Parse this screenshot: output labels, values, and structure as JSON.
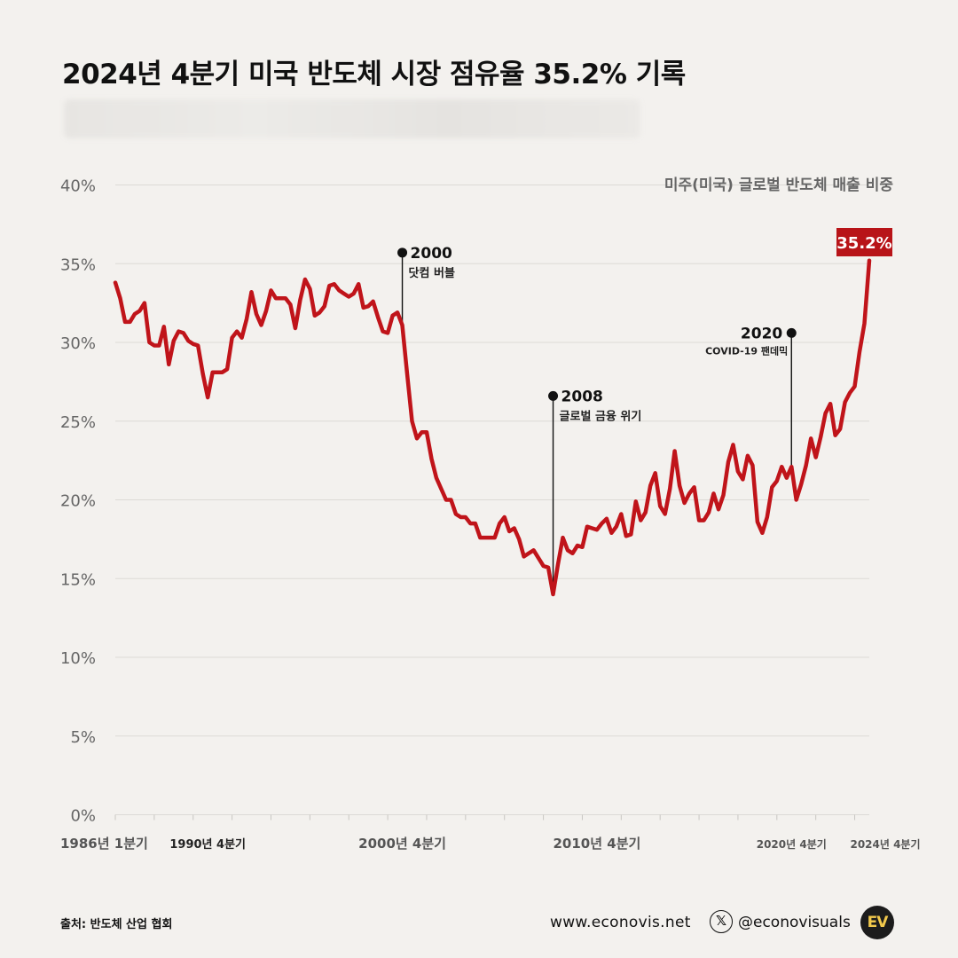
{
  "page": {
    "title": "2024년 4분기 미국 반도체 시장 점유율 35.2% 기록",
    "source": "출처: 반도체 산업 협회",
    "website": "www.econovis.net",
    "social_icon": "x-logo-icon",
    "social_handle": "@econovisuals",
    "logo_text": "EV"
  },
  "colors": {
    "line": "#c0141a",
    "badge": "#b81418",
    "grid": "#dcdad6",
    "background": "#f3f1ee"
  },
  "chart_data": {
    "type": "line",
    "title": "2024년 4분기 미국 반도체 시장 점유율 35.2% 기록",
    "series_label": "미주(미국) 글로벌 반도체 매출 비중",
    "ylim": [
      0,
      40
    ],
    "yticks": [
      0,
      5,
      10,
      15,
      20,
      25,
      30,
      35,
      40
    ],
    "ytick_labels": [
      "0%",
      "5%",
      "10%",
      "15%",
      "20%",
      "25%",
      "30%",
      "35%",
      "40%"
    ],
    "grid": true,
    "x_start": "1986년 1분기",
    "x_end": "2024년 4분기",
    "x_labels": [
      {
        "label": "1986년 1분기",
        "year": 1986.0
      },
      {
        "label": "1990년 4분기",
        "year": 1990.75
      },
      {
        "label": "2000년 4분기",
        "year": 2000.75
      },
      {
        "label": "2010년 4분기",
        "year": 2010.75
      },
      {
        "label": "2020년 4분기",
        "year": 2020.75
      },
      {
        "label": "2024년 4분기",
        "year": 2024.75
      }
    ],
    "points": [
      [
        1986.0,
        33.8
      ],
      [
        1986.25,
        32.8
      ],
      [
        1986.5,
        31.3
      ],
      [
        1986.75,
        31.3
      ],
      [
        1987.0,
        31.8
      ],
      [
        1987.25,
        32.0
      ],
      [
        1987.5,
        32.5
      ],
      [
        1987.75,
        30.0
      ],
      [
        1988.0,
        29.8
      ],
      [
        1988.25,
        29.8
      ],
      [
        1988.5,
        31.0
      ],
      [
        1988.75,
        28.6
      ],
      [
        1989.0,
        30.1
      ],
      [
        1989.25,
        30.7
      ],
      [
        1989.5,
        30.6
      ],
      [
        1989.75,
        30.1
      ],
      [
        1990.0,
        29.9
      ],
      [
        1990.25,
        29.8
      ],
      [
        1990.5,
        28.0
      ],
      [
        1990.75,
        26.5
      ],
      [
        1991.0,
        28.1
      ],
      [
        1991.25,
        28.1
      ],
      [
        1991.5,
        28.1
      ],
      [
        1991.75,
        28.3
      ],
      [
        1992.0,
        30.3
      ],
      [
        1992.25,
        30.7
      ],
      [
        1992.5,
        30.3
      ],
      [
        1992.75,
        31.5
      ],
      [
        1993.0,
        33.2
      ],
      [
        1993.25,
        31.8
      ],
      [
        1993.5,
        31.1
      ],
      [
        1993.75,
        32.0
      ],
      [
        1994.0,
        33.3
      ],
      [
        1994.25,
        32.8
      ],
      [
        1994.5,
        32.8
      ],
      [
        1994.75,
        32.8
      ],
      [
        1995.0,
        32.4
      ],
      [
        1995.25,
        30.9
      ],
      [
        1995.5,
        32.7
      ],
      [
        1995.75,
        34.0
      ],
      [
        1996.0,
        33.4
      ],
      [
        1996.25,
        31.7
      ],
      [
        1996.5,
        31.9
      ],
      [
        1996.75,
        32.3
      ],
      [
        1997.0,
        33.6
      ],
      [
        1997.25,
        33.7
      ],
      [
        1997.5,
        33.3
      ],
      [
        1997.75,
        33.1
      ],
      [
        1998.0,
        32.9
      ],
      [
        1998.25,
        33.1
      ],
      [
        1998.5,
        33.7
      ],
      [
        1998.75,
        32.2
      ],
      [
        1999.0,
        32.3
      ],
      [
        1999.25,
        32.6
      ],
      [
        1999.5,
        31.6
      ],
      [
        1999.75,
        30.7
      ],
      [
        2000.0,
        30.6
      ],
      [
        2000.25,
        31.7
      ],
      [
        2000.5,
        31.9
      ],
      [
        2000.75,
        31.1
      ],
      [
        2001.0,
        28.0
      ],
      [
        2001.25,
        25.0
      ],
      [
        2001.5,
        23.9
      ],
      [
        2001.75,
        24.3
      ],
      [
        2002.0,
        24.3
      ],
      [
        2002.25,
        22.6
      ],
      [
        2002.5,
        21.4
      ],
      [
        2002.75,
        20.7
      ],
      [
        2003.0,
        20.0
      ],
      [
        2003.25,
        20.0
      ],
      [
        2003.5,
        19.1
      ],
      [
        2003.75,
        18.9
      ],
      [
        2004.0,
        18.9
      ],
      [
        2004.25,
        18.5
      ],
      [
        2004.5,
        18.5
      ],
      [
        2004.75,
        17.6
      ],
      [
        2005.0,
        17.6
      ],
      [
        2005.25,
        17.6
      ],
      [
        2005.5,
        17.6
      ],
      [
        2005.75,
        18.5
      ],
      [
        2006.0,
        18.9
      ],
      [
        2006.25,
        18.0
      ],
      [
        2006.5,
        18.2
      ],
      [
        2006.75,
        17.5
      ],
      [
        2007.0,
        16.4
      ],
      [
        2007.25,
        16.6
      ],
      [
        2007.5,
        16.8
      ],
      [
        2007.75,
        16.3
      ],
      [
        2008.0,
        15.8
      ],
      [
        2008.25,
        15.7
      ],
      [
        2008.5,
        14.0
      ],
      [
        2008.75,
        15.9
      ],
      [
        2009.0,
        17.6
      ],
      [
        2009.25,
        16.8
      ],
      [
        2009.5,
        16.6
      ],
      [
        2009.75,
        17.1
      ],
      [
        2010.0,
        17.0
      ],
      [
        2010.25,
        18.3
      ],
      [
        2010.5,
        18.2
      ],
      [
        2010.75,
        18.1
      ],
      [
        2011.0,
        18.5
      ],
      [
        2011.25,
        18.8
      ],
      [
        2011.5,
        17.9
      ],
      [
        2011.75,
        18.3
      ],
      [
        2012.0,
        19.1
      ],
      [
        2012.25,
        17.7
      ],
      [
        2012.5,
        17.8
      ],
      [
        2012.75,
        19.9
      ],
      [
        2013.0,
        18.7
      ],
      [
        2013.25,
        19.2
      ],
      [
        2013.5,
        20.9
      ],
      [
        2013.75,
        21.7
      ],
      [
        2014.0,
        19.6
      ],
      [
        2014.25,
        19.1
      ],
      [
        2014.5,
        20.7
      ],
      [
        2014.75,
        23.1
      ],
      [
        2015.0,
        20.9
      ],
      [
        2015.25,
        19.8
      ],
      [
        2015.5,
        20.4
      ],
      [
        2015.75,
        20.8
      ],
      [
        2016.0,
        18.7
      ],
      [
        2016.25,
        18.7
      ],
      [
        2016.5,
        19.2
      ],
      [
        2016.75,
        20.4
      ],
      [
        2017.0,
        19.4
      ],
      [
        2017.25,
        20.3
      ],
      [
        2017.5,
        22.4
      ],
      [
        2017.75,
        23.5
      ],
      [
        2018.0,
        21.8
      ],
      [
        2018.25,
        21.3
      ],
      [
        2018.5,
        22.8
      ],
      [
        2018.75,
        22.2
      ],
      [
        2019.0,
        18.6
      ],
      [
        2019.25,
        17.9
      ],
      [
        2019.5,
        18.9
      ],
      [
        2019.75,
        20.8
      ],
      [
        2020.0,
        21.2
      ],
      [
        2020.25,
        22.1
      ],
      [
        2020.5,
        21.4
      ],
      [
        2020.75,
        22.1
      ],
      [
        2021.0,
        20.0
      ],
      [
        2021.25,
        21.0
      ],
      [
        2021.5,
        22.2
      ],
      [
        2021.75,
        23.9
      ],
      [
        2022.0,
        22.7
      ],
      [
        2022.25,
        24.0
      ],
      [
        2022.5,
        25.5
      ],
      [
        2022.75,
        26.1
      ],
      [
        2023.0,
        24.1
      ],
      [
        2023.25,
        24.5
      ],
      [
        2023.5,
        26.2
      ],
      [
        2023.75,
        26.8
      ],
      [
        2024.0,
        27.2
      ],
      [
        2024.25,
        29.4
      ],
      [
        2024.5,
        31.2
      ],
      [
        2024.75,
        35.2
      ]
    ],
    "end_value_label": "35.2%",
    "annotations": [
      {
        "year_label": "2000",
        "text": "닷컴 버블",
        "x": 2000.75,
        "y_line_top": 35.7,
        "y_line_bottom": 31.1,
        "side": "right"
      },
      {
        "year_label": "2008",
        "text": "글로벌 금융 위기",
        "x": 2008.5,
        "y_line_top": 26.6,
        "y_line_bottom": 14.0,
        "side": "right"
      },
      {
        "year_label": "2020",
        "text": "COVID-19 팬데믹",
        "x": 2020.75,
        "y_line_top": 30.6,
        "y_line_bottom": 22.1,
        "side": "left"
      }
    ]
  }
}
